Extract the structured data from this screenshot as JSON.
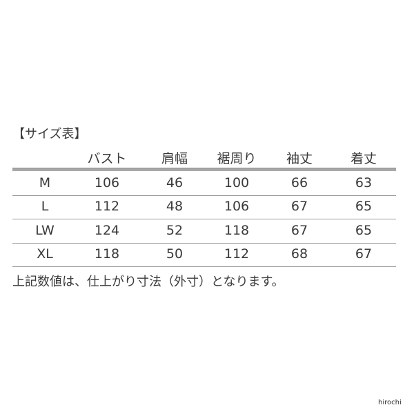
{
  "title": "【サイズ表】",
  "table": {
    "headers": [
      "",
      "バスト",
      "肩幅",
      "裾周り",
      "袖丈",
      "着丈"
    ],
    "rows": [
      [
        "M",
        "106",
        "46",
        "100",
        "66",
        "63"
      ],
      [
        "L",
        "112",
        "48",
        "106",
        "67",
        "65"
      ],
      [
        "LW",
        "124",
        "52",
        "118",
        "67",
        "65"
      ],
      [
        "XL",
        "118",
        "50",
        "112",
        "68",
        "67"
      ]
    ]
  },
  "note": "上記数値は、仕上がり寸法（外寸）となります。",
  "watermark": "hirochi"
}
